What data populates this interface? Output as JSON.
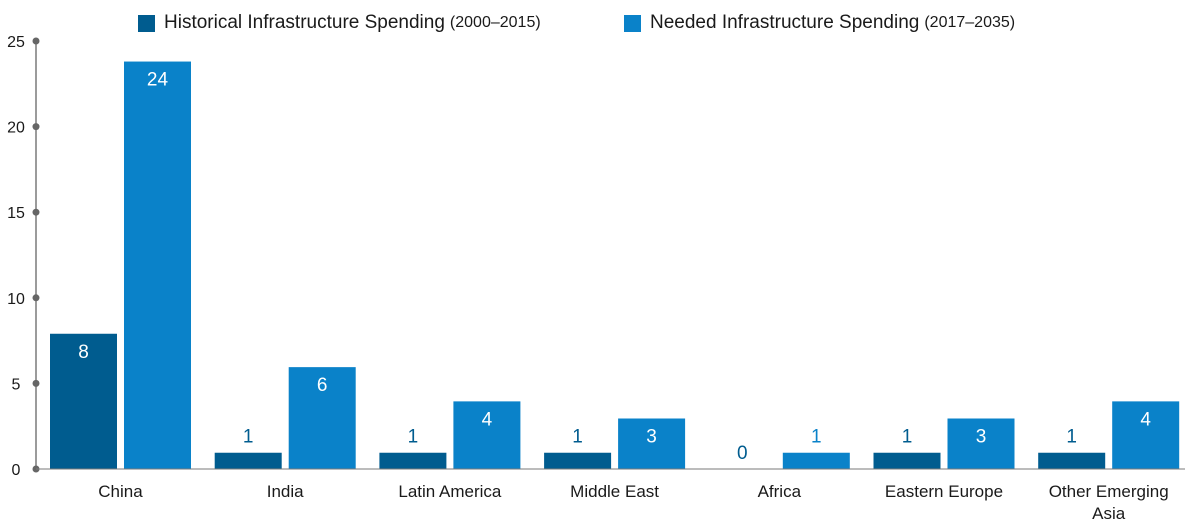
{
  "chart_data": {
    "type": "bar",
    "categories": [
      "China",
      "India",
      "Latin America",
      "Middle East",
      "Africa",
      "Eastern Europe",
      "Other Emerging Asia"
    ],
    "category_lines": [
      [
        "China"
      ],
      [
        "India"
      ],
      [
        "Latin America"
      ],
      [
        "Middle East"
      ],
      [
        "Africa"
      ],
      [
        "Eastern Europe"
      ],
      [
        "Other Emerging",
        "Asia"
      ]
    ],
    "series": [
      {
        "name": "Historical Infrastructure Spending",
        "period": "(2000–2015)",
        "color": "#005c8f",
        "values": [
          7.9,
          0.95,
          0.95,
          0.95,
          0,
          0.95,
          0.95
        ],
        "labels": [
          "8",
          "1",
          "1",
          "1",
          "0",
          "1",
          "1"
        ]
      },
      {
        "name": "Needed Infrastructure Spending",
        "period": "(2017–2035)",
        "color": "#0a82c9",
        "values": [
          23.8,
          5.95,
          3.95,
          2.95,
          0.95,
          2.95,
          3.95
        ],
        "labels": [
          "24",
          "6",
          "4",
          "3",
          "1",
          "3",
          "4"
        ]
      }
    ],
    "yticks": [
      0,
      5,
      10,
      15,
      20,
      25
    ],
    "ylim": [
      0,
      25
    ],
    "title": "",
    "xlabel": "",
    "ylabel": "",
    "grid": false,
    "legend_position": "top"
  }
}
